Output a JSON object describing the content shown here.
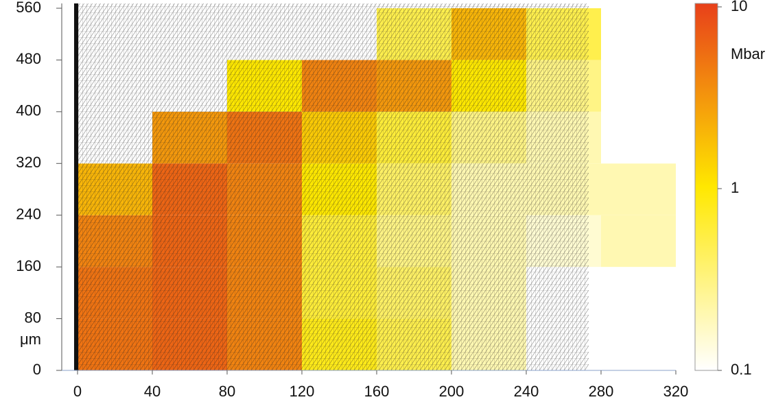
{
  "chart_data": {
    "type": "heatmap",
    "ylabel": "μm",
    "xbins": [
      0,
      40,
      80,
      120,
      160,
      200,
      240,
      280,
      320
    ],
    "ybins": [
      0,
      80,
      160,
      240,
      320,
      400,
      480,
      560
    ],
    "z": [
      [
        5,
        6,
        4,
        0.8,
        0.5,
        0.2,
        0.1,
        0.1
      ],
      [
        5,
        6,
        4,
        0.6,
        0.4,
        0.2,
        0.1,
        0.1
      ],
      [
        4,
        6,
        4,
        0.6,
        0.3,
        0.2,
        0.15,
        0.2
      ],
      [
        2,
        6,
        4,
        1,
        0.4,
        0.2,
        0.2,
        0.2
      ],
      [
        0.1,
        3,
        5,
        1.5,
        0.6,
        0.3,
        0.2,
        0.1
      ],
      [
        0.1,
        0.1,
        1,
        4,
        3,
        1,
        0.3,
        0.1
      ],
      [
        0.1,
        0.1,
        0.1,
        0.1,
        0.5,
        2,
        0.5,
        0.1
      ]
    ],
    "xlim": [
      0,
      320
    ],
    "xticks": [
      0,
      40,
      80,
      120,
      160,
      200,
      240,
      280,
      320
    ],
    "ylim": [
      0,
      560
    ],
    "yticks": [
      0,
      80,
      160,
      240,
      320,
      400,
      480,
      560
    ],
    "colorbar": {
      "label": "Mbar",
      "log": true,
      "zlim": [
        0.1,
        10
      ],
      "ticks": [
        10,
        1,
        0.1
      ],
      "colorscale": [
        "#ffffff",
        "#ffe800",
        "#e8401a"
      ]
    }
  }
}
